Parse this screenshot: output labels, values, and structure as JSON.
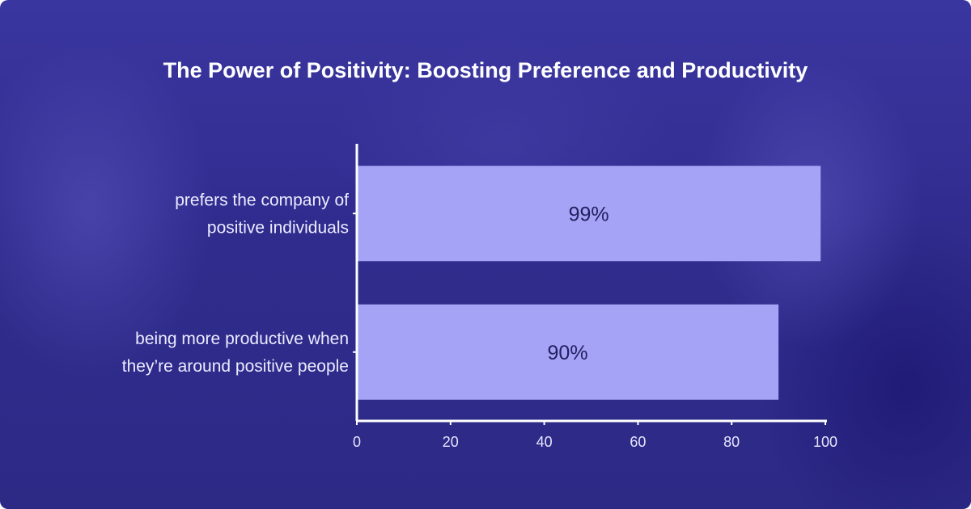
{
  "chart_data": {
    "type": "bar",
    "orientation": "horizontal",
    "title": "The Power of Positivity: Boosting Preference and Productivity",
    "categories": [
      [
        "prefers the company of",
        "positive individuals"
      ],
      [
        "being more productive when",
        "they’re around positive people"
      ]
    ],
    "values": [
      99,
      90
    ],
    "data_labels": [
      "99%",
      "90%"
    ],
    "xlim": [
      0,
      100
    ],
    "xticks": [
      "0",
      "20",
      "40",
      "60",
      "80",
      "100"
    ],
    "grid": false,
    "bar_color": "#a4a3f6",
    "background_color": "#302c8e"
  }
}
